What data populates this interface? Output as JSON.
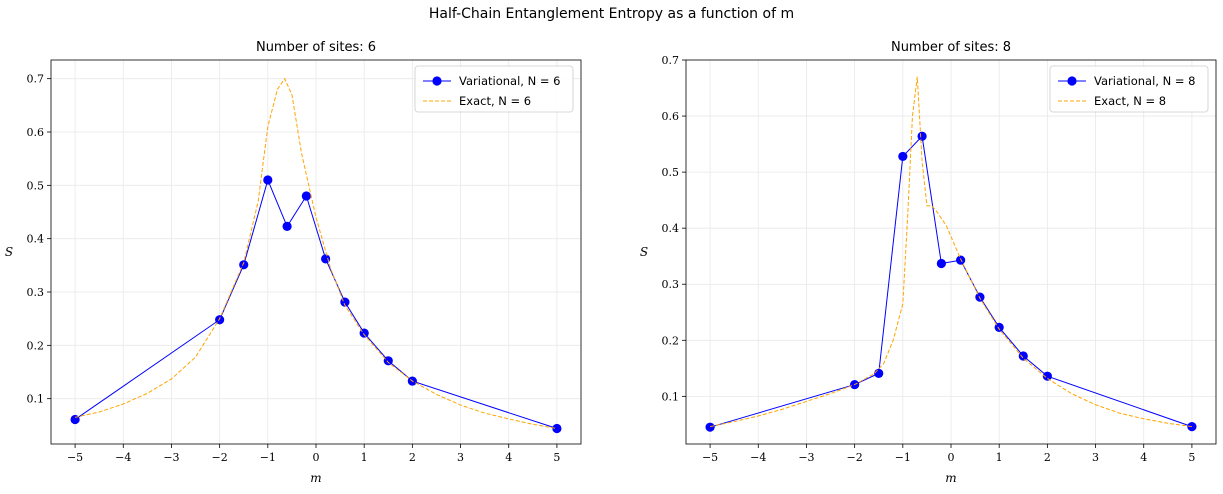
{
  "figure": {
    "suptitle": "Half-Chain Entanglement Entropy as a function of m"
  },
  "chart_data": [
    {
      "type": "line",
      "title": "Number of sites: 6",
      "xlabel": "m",
      "ylabel": "S",
      "xlim": [
        -5.5,
        5.5
      ],
      "ylim": [
        0.015,
        0.735
      ],
      "xticks": [
        -5,
        -4,
        -3,
        -2,
        -1,
        0,
        1,
        2,
        3,
        4,
        5
      ],
      "xtick_labels": [
        "−5",
        "−4",
        "−3",
        "−2",
        "−1",
        "0",
        "1",
        "2",
        "3",
        "4",
        "5"
      ],
      "yticks": [
        0.1,
        0.2,
        0.3,
        0.4,
        0.5,
        0.6,
        0.7
      ],
      "ytick_labels": [
        "0.1",
        "0.2",
        "0.3",
        "0.4",
        "0.5",
        "0.6",
        "0.7"
      ],
      "grid": true,
      "legend_position": "top-right",
      "series": [
        {
          "name": "Variational, N = 6",
          "style": "solid-marker",
          "color": "#0000ff",
          "x": [
            -5,
            -2,
            -1.5,
            -1,
            -0.6,
            -0.2,
            0.2,
            0.6,
            1,
            1.5,
            2,
            5
          ],
          "y": [
            0.061,
            0.248,
            0.351,
            0.51,
            0.423,
            0.48,
            0.362,
            0.281,
            0.223,
            0.171,
            0.133,
            0.044
          ]
        },
        {
          "name": "Exact, N = 6",
          "style": "dashed",
          "color": "#ffa500",
          "x": [
            -5,
            -4.5,
            -4,
            -3.5,
            -3,
            -2.5,
            -2,
            -1.5,
            -1.2,
            -1,
            -0.8,
            -0.65,
            -0.5,
            -0.3,
            0,
            0.3,
            0.6,
            1,
            1.5,
            2,
            2.5,
            3,
            3.5,
            4,
            4.5,
            5
          ],
          "y": [
            0.065,
            0.075,
            0.09,
            0.11,
            0.137,
            0.178,
            0.25,
            0.355,
            0.47,
            0.61,
            0.68,
            0.7,
            0.67,
            0.56,
            0.44,
            0.345,
            0.275,
            0.22,
            0.168,
            0.133,
            0.108,
            0.088,
            0.073,
            0.062,
            0.052,
            0.044
          ]
        }
      ]
    },
    {
      "type": "line",
      "title": "Number of sites: 8",
      "xlabel": "m",
      "ylabel": "S",
      "xlim": [
        -5.5,
        5.5
      ],
      "ylim": [
        0.015,
        0.7
      ],
      "xticks": [
        -5,
        -4,
        -3,
        -2,
        -1,
        0,
        1,
        2,
        3,
        4,
        5
      ],
      "xtick_labels": [
        "−5",
        "−4",
        "−3",
        "−2",
        "−1",
        "0",
        "1",
        "2",
        "3",
        "4",
        "5"
      ],
      "yticks": [
        0.1,
        0.2,
        0.3,
        0.4,
        0.5,
        0.6,
        0.7
      ],
      "ytick_labels": [
        "0.1",
        "0.2",
        "0.3",
        "0.4",
        "0.5",
        "0.6",
        "0.7"
      ],
      "grid": true,
      "legend_position": "top-right",
      "series": [
        {
          "name": "Variational, N = 8",
          "style": "solid-marker",
          "color": "#0000ff",
          "x": [
            -5,
            -2,
            -1.5,
            -1,
            -0.6,
            -0.2,
            0.2,
            0.6,
            1,
            1.5,
            2,
            5
          ],
          "y": [
            0.045,
            0.121,
            0.141,
            0.528,
            0.564,
            0.337,
            0.343,
            0.277,
            0.223,
            0.172,
            0.136,
            0.046
          ]
        },
        {
          "name": "Exact, N = 8",
          "style": "dashed",
          "color": "#ffa500",
          "x": [
            -5,
            -4.5,
            -4,
            -3.5,
            -3,
            -2.5,
            -2,
            -1.6,
            -1.4,
            -1.2,
            -1,
            -0.9,
            -0.8,
            -0.7,
            -0.6,
            -0.5,
            -0.4,
            -0.3,
            -0.1,
            0.2,
            0.6,
            1,
            1.5,
            2,
            2.5,
            3,
            3.5,
            4,
            4.5,
            5
          ],
          "y": [
            0.046,
            0.055,
            0.065,
            0.077,
            0.091,
            0.105,
            0.121,
            0.14,
            0.158,
            0.2,
            0.265,
            0.42,
            0.6,
            0.67,
            0.52,
            0.44,
            0.44,
            0.43,
            0.405,
            0.345,
            0.275,
            0.22,
            0.168,
            0.132,
            0.105,
            0.085,
            0.07,
            0.06,
            0.052,
            0.046
          ]
        }
      ]
    }
  ]
}
